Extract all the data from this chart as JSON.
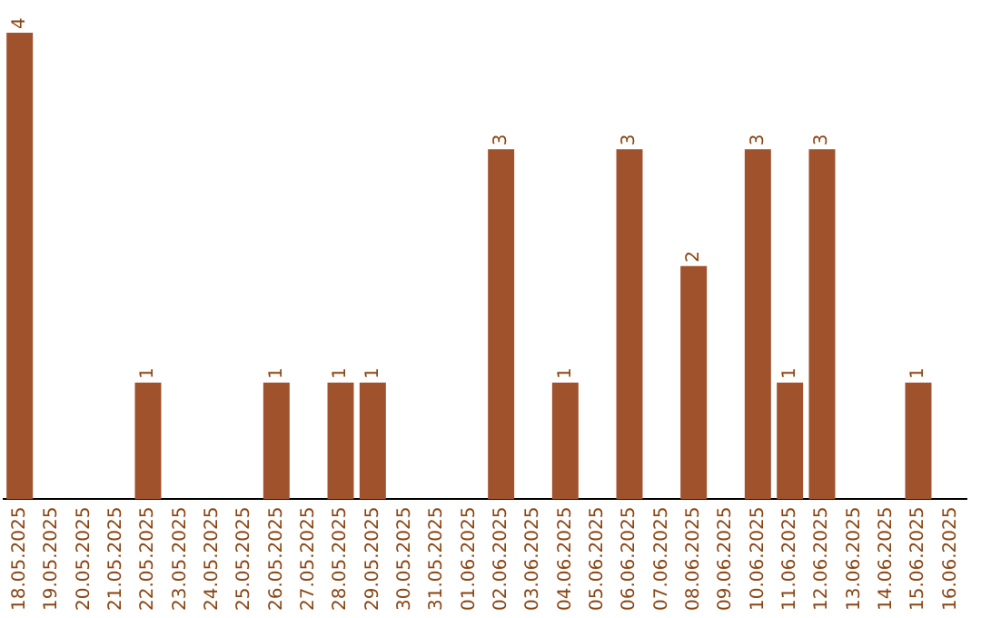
{
  "chart_data": {
    "type": "bar",
    "categories": [
      "18.05.2025",
      "19.05.2025",
      "20.05.2025",
      "21.05.2025",
      "22.05.2025",
      "23.05.2025",
      "24.05.2025",
      "25.05.2025",
      "26.05.2025",
      "27.05.2025",
      "28.05.2025",
      "29.05.2025",
      "30.05.2025",
      "31.05.2025",
      "01.06.2025",
      "02.06.2025",
      "03.06.2025",
      "04.06.2025",
      "05.06.2025",
      "06.06.2025",
      "07.06.2025",
      "08.06.2025",
      "09.06.2025",
      "10.06.2025",
      "11.06.2025",
      "12.06.2025",
      "13.06.2025",
      "14.06.2025",
      "15.06.2025",
      "16.06.2025"
    ],
    "values": [
      4,
      0,
      0,
      0,
      1,
      0,
      0,
      0,
      1,
      0,
      1,
      1,
      0,
      0,
      0,
      3,
      0,
      1,
      0,
      3,
      0,
      2,
      0,
      3,
      1,
      3,
      0,
      0,
      1,
      0
    ],
    "value_labels": [
      "4",
      null,
      null,
      null,
      "1",
      null,
      null,
      null,
      "1",
      null,
      "1",
      "1",
      null,
      null,
      null,
      "3",
      null,
      "1",
      null,
      "3",
      null,
      "2",
      null,
      "3",
      "1",
      "3",
      null,
      null,
      "1",
      null
    ],
    "color": "#a0522d",
    "grid": false,
    "legend": false,
    "tick_labels": "x"
  }
}
